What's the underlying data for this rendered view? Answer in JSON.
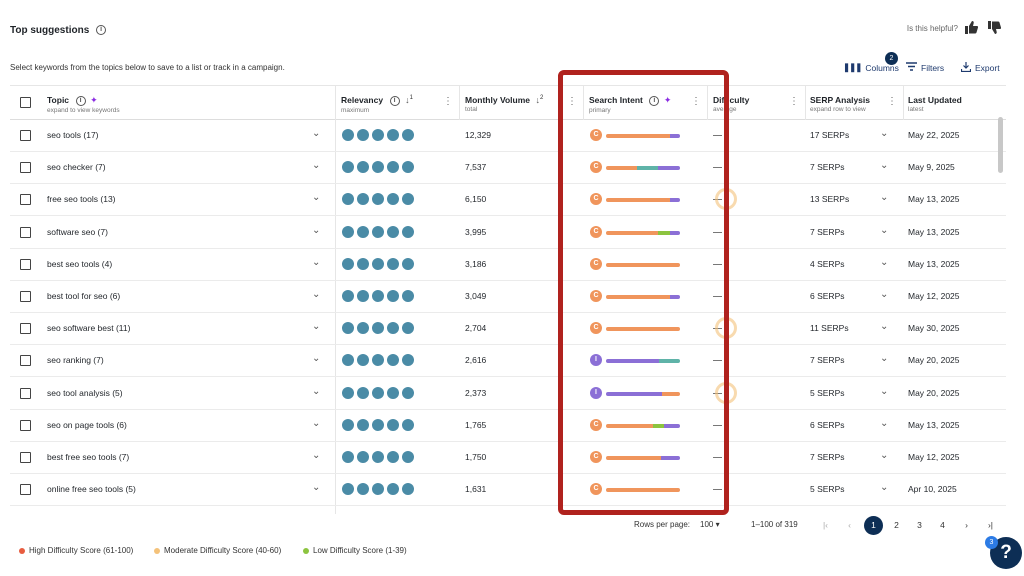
{
  "header": {
    "title": "Top suggestions",
    "helpful_text": "Is this helpful?",
    "subtitle": "Select keywords from the topics below to save to a list or track in a campaign."
  },
  "toolbar": {
    "columns_label": "Columns",
    "columns_badge": "2",
    "filters_label": "Filters",
    "export_label": "Export"
  },
  "columns": {
    "topic": {
      "label": "Topic",
      "sub": "expand to view keywords"
    },
    "relevancy": {
      "label": "Relevancy",
      "sub": "maximum",
      "sort_rank": "1"
    },
    "volume": {
      "label": "Monthly Volume",
      "sub": "total",
      "sort_rank": "2"
    },
    "intent": {
      "label": "Search Intent",
      "sub": "primary"
    },
    "difficulty": {
      "label": "Difficulty",
      "sub": "average"
    },
    "serp": {
      "label": "SERP Analysis",
      "sub": "expand row to view"
    },
    "updated": {
      "label": "Last Updated",
      "sub": "latest"
    }
  },
  "rows": [
    {
      "topic": "seo tools (17)",
      "volume": "12,329",
      "intent": "C",
      "serp": "17 SERPs",
      "updated": "May 22, 2025"
    },
    {
      "topic": "seo checker (7)",
      "volume": "7,537",
      "intent": "C",
      "serp": "7 SERPs",
      "updated": "May 9, 2025"
    },
    {
      "topic": "free seo tools (13)",
      "volume": "6,150",
      "intent": "C",
      "serp": "13 SERPs",
      "updated": "May 13, 2025"
    },
    {
      "topic": "software seo (7)",
      "volume": "3,995",
      "intent": "C",
      "serp": "7 SERPs",
      "updated": "May 13, 2025"
    },
    {
      "topic": "best seo tools (4)",
      "volume": "3,186",
      "intent": "C",
      "serp": "4 SERPs",
      "updated": "May 13, 2025"
    },
    {
      "topic": "best tool for seo (6)",
      "volume": "3,049",
      "intent": "C",
      "serp": "6 SERPs",
      "updated": "May 12, 2025"
    },
    {
      "topic": "seo software best (11)",
      "volume": "2,704",
      "intent": "C",
      "serp": "11 SERPs",
      "updated": "May 30, 2025"
    },
    {
      "topic": "seo ranking (7)",
      "volume": "2,616",
      "intent": "I",
      "serp": "7 SERPs",
      "updated": "May 20, 2025"
    },
    {
      "topic": "seo tool analysis (5)",
      "volume": "2,373",
      "intent": "I",
      "serp": "5 SERPs",
      "updated": "May 20, 2025"
    },
    {
      "topic": "seo on page tools (6)",
      "volume": "1,765",
      "intent": "C",
      "serp": "6 SERPs",
      "updated": "May 13, 2025"
    },
    {
      "topic": "best free seo tools (7)",
      "volume": "1,750",
      "intent": "C",
      "serp": "7 SERPs",
      "updated": "May 12, 2025"
    },
    {
      "topic": "online free seo tools (5)",
      "volume": "1,631",
      "intent": "C",
      "serp": "5 SERPs",
      "updated": "Apr 10, 2025"
    }
  ],
  "pagination": {
    "rows_per_page_label": "Rows per page:",
    "rows_per_page_value": "100",
    "range_text": "1–100 of 319",
    "pages": [
      "1",
      "2",
      "3",
      "4"
    ],
    "current_page": "1"
  },
  "legend": {
    "high": "High Difficulty Score (61-100)",
    "moderate": "Moderate Difficulty Score (40-60)",
    "low": "Low Difficulty Score (1-39)"
  },
  "help": {
    "label": "?",
    "badge": "3"
  },
  "colors": {
    "accent": "#0d2e55",
    "relevancy_dot": "#4a8ba6",
    "intent_commercial": "#f0955c",
    "intent_informational": "#8b6fd6",
    "intent_teal": "#5fb3a8",
    "intent_green": "#8cc43f",
    "difficulty_high": "#e85c3f",
    "difficulty_moderate": "#f4c27a",
    "difficulty_low": "#8cc43f",
    "annotation": "#b0221e"
  }
}
